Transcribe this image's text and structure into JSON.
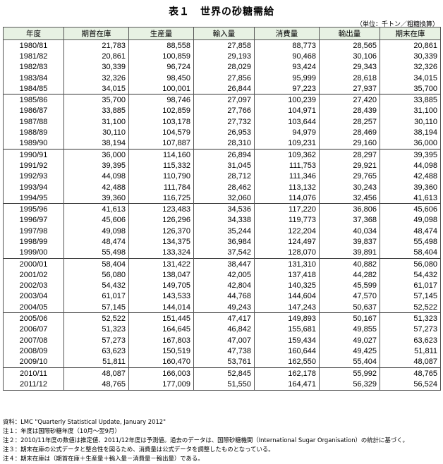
{
  "title": "表１　世界の砂糖需給",
  "unit": "（単位：千トン／粗糖換算）",
  "columns": [
    "年度",
    "期首在庫",
    "生産量",
    "輸入量",
    "消費量",
    "輸出量",
    "期末在庫"
  ],
  "rows": [
    [
      "1980/81",
      "21,783",
      "88,558",
      "27,858",
      "88,773",
      "28,565",
      "20,861"
    ],
    [
      "1981/82",
      "20,861",
      "100,859",
      "29,193",
      "90,468",
      "30,106",
      "30,339"
    ],
    [
      "1982/83",
      "30,339",
      "96,724",
      "28,029",
      "93,424",
      "29,343",
      "32,326"
    ],
    [
      "1983/84",
      "32,326",
      "98,450",
      "27,856",
      "95,999",
      "28,618",
      "34,015"
    ],
    [
      "1984/85",
      "34,015",
      "100,001",
      "26,844",
      "97,223",
      "27,937",
      "35,700"
    ],
    [
      "1985/86",
      "35,700",
      "98,746",
      "27,097",
      "100,239",
      "27,420",
      "33,885"
    ],
    [
      "1986/87",
      "33,885",
      "102,859",
      "27,766",
      "104,971",
      "28,439",
      "31,100"
    ],
    [
      "1987/88",
      "31,100",
      "103,178",
      "27,732",
      "103,644",
      "28,257",
      "30,110"
    ],
    [
      "1988/89",
      "30,110",
      "104,579",
      "26,953",
      "94,979",
      "28,469",
      "38,194"
    ],
    [
      "1989/90",
      "38,194",
      "107,887",
      "28,310",
      "109,231",
      "29,160",
      "36,000"
    ],
    [
      "1990/91",
      "36,000",
      "114,160",
      "26,894",
      "109,362",
      "28,297",
      "39,395"
    ],
    [
      "1991/92",
      "39,395",
      "115,332",
      "31,045",
      "111,753",
      "29,921",
      "44,098"
    ],
    [
      "1992/93",
      "44,098",
      "110,790",
      "28,712",
      "111,346",
      "29,765",
      "42,488"
    ],
    [
      "1993/94",
      "42,488",
      "111,784",
      "28,462",
      "113,132",
      "30,243",
      "39,360"
    ],
    [
      "1994/95",
      "39,360",
      "116,725",
      "32,060",
      "114,076",
      "32,456",
      "41,613"
    ],
    [
      "1995/96",
      "41,613",
      "123,483",
      "34,536",
      "117,220",
      "36,806",
      "45,606"
    ],
    [
      "1996/97",
      "45,606",
      "126,296",
      "34,338",
      "119,773",
      "37,368",
      "49,098"
    ],
    [
      "1997/98",
      "49,098",
      "126,370",
      "35,244",
      "122,204",
      "40,034",
      "48,474"
    ],
    [
      "1998/99",
      "48,474",
      "134,375",
      "36,984",
      "124,497",
      "39,837",
      "55,498"
    ],
    [
      "1999/00",
      "55,498",
      "133,324",
      "37,542",
      "128,070",
      "39,891",
      "58,404"
    ],
    [
      "2000/01",
      "58,404",
      "131,422",
      "38,447",
      "131,310",
      "40,882",
      "56,080"
    ],
    [
      "2001/02",
      "56,080",
      "138,047",
      "42,005",
      "137,418",
      "44,282",
      "54,432"
    ],
    [
      "2002/03",
      "54,432",
      "149,705",
      "42,804",
      "140,325",
      "45,599",
      "61,017"
    ],
    [
      "2003/04",
      "61,017",
      "143,533",
      "44,768",
      "144,604",
      "47,570",
      "57,145"
    ],
    [
      "2004/05",
      "57,145",
      "144,014",
      "49,243",
      "147,243",
      "50,637",
      "52,522"
    ],
    [
      "2005/06",
      "52,522",
      "151,445",
      "47,417",
      "149,893",
      "50,167",
      "51,323"
    ],
    [
      "2006/07",
      "51,323",
      "164,645",
      "46,842",
      "155,681",
      "49,855",
      "57,273"
    ],
    [
      "2007/08",
      "57,273",
      "167,803",
      "47,007",
      "159,434",
      "49,027",
      "63,623"
    ],
    [
      "2008/09",
      "63,623",
      "150,519",
      "47,738",
      "160,644",
      "49,425",
      "51,811"
    ],
    [
      "2009/10",
      "51,811",
      "160,470",
      "53,761",
      "162,550",
      "55,404",
      "48,087"
    ],
    [
      "2010/11",
      "48,087",
      "166,003",
      "52,845",
      "162,178",
      "55,992",
      "48,765"
    ],
    [
      "2011/12",
      "48,765",
      "177,009",
      "51,550",
      "164,471",
      "56,329",
      "56,524"
    ]
  ],
  "notes": [
    "資料：LMC \"Quarterly Statistical Update, January 2012\"",
    "注１：年度は国際砂糖年度（10月～翌9月）",
    "注２：2010/11年度の数値は推定値、2011/12年度は予測値。過去のデータは、国際砂糖機関（International Sugar Organisation）の統計に基づく。",
    "注３：期末在庫の公式データと整合性を図るため、消費量は公式データを調整したものとなっている。",
    "注４：期末在庫は（期首在庫＋生産量＋輸入量－消費量－輸出量）である。"
  ]
}
